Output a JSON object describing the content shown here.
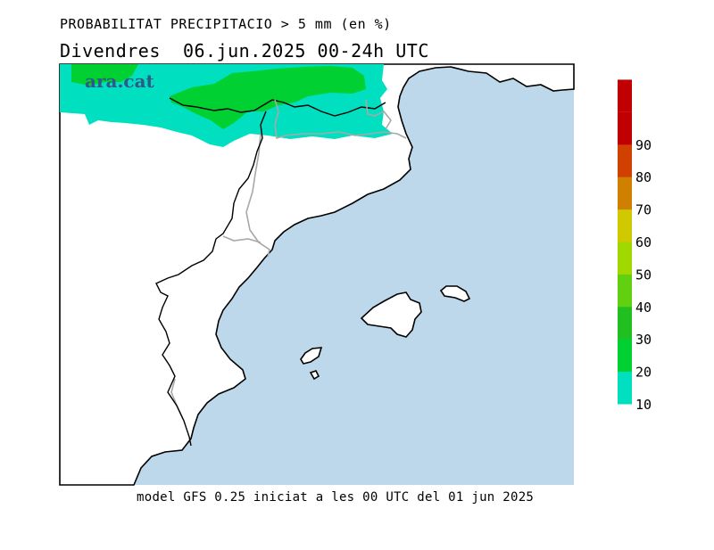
{
  "header": {
    "title": "PROBABILITAT PRECIPITACIO > 5 mm (en %)",
    "subtitle": "Divendres  06.jun.2025 00-24h UTC"
  },
  "logo": {
    "text": "ara.cat"
  },
  "footer": {
    "text": "model GFS 0.25 iniciat a les 00 UTC del 01 jun 2025"
  },
  "map": {
    "sea_color": "#bcd8ea",
    "land_color": "#ffffff",
    "probability_field": {
      "present_classes": [
        "10",
        "20",
        "30"
      ],
      "location": "north of Catalonia / Pyrenees"
    }
  },
  "legend": {
    "classes": [
      {
        "label": "10",
        "color": "#00e0c0"
      },
      {
        "label": "20",
        "color": "#00d032"
      },
      {
        "label": "30",
        "color": "#20c020"
      },
      {
        "label": "40",
        "color": "#60d010"
      },
      {
        "label": "50",
        "color": "#a0d800"
      },
      {
        "label": "60",
        "color": "#d0c800"
      },
      {
        "label": "70",
        "color": "#d08000"
      },
      {
        "label": "80",
        "color": "#d04000"
      },
      {
        "label": "90",
        "color": "#c00000"
      }
    ]
  }
}
